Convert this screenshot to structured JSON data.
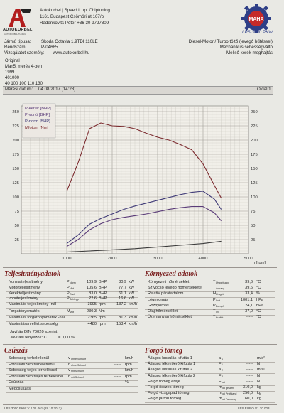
{
  "header": {
    "company_line1": "Autokorbel | Speed it up! Chiptuning",
    "company_line2": "1161 Budapest Csömöri út 167/b",
    "company_line3": "Radenkovits Péter +36 30 9727809",
    "logo_text": "AUTOKORBEL",
    "logo_sub": "AUTOKORBEL TUNING",
    "brand": "MAHA",
    "model": "LPS 3000 PKW"
  },
  "vehicle": {
    "type_label": "Jármű típusa:",
    "type_value": "Skoda Octavia 1,9TDI 110LE",
    "plate_label": "Rendszám:",
    "plate_value": "P-04685",
    "owner_label": "Vizsgálatot személy:",
    "owner_value": "www.autokorbel.hu",
    "engine": "Diesel-Motor / Turbo töltő (levegő hűtéssel)",
    "gearbox": "Mechanikus sebességváltó",
    "drive": "Mellső kerék meghajtás"
  },
  "notes": [
    "Original",
    "Man5, mérés 4-ben",
    "1999",
    "401000",
    "40 100 100 110 130"
  ],
  "meta": {
    "date_label": "Mérési dátum:",
    "date_value": "04.08.2017 (14:28)",
    "page": "Oldal 1"
  },
  "chart_data": {
    "type": "line",
    "xlabel": "n [rpm]",
    "x_ticks": [
      "1000",
      "2000",
      "3000",
      "4000",
      "5000"
    ],
    "x_lim": [
      0,
      5000
    ],
    "left_ticks": [
      "250",
      "225",
      "200",
      "175",
      "150",
      "125",
      "100",
      "75",
      "50",
      "25"
    ],
    "right_ticks": [
      "250",
      "225",
      "200",
      "175",
      "150",
      "125",
      "100",
      "75",
      "50",
      "25"
    ],
    "legend": [
      "P-kerék [BHP]",
      "P-vonó [BHP]",
      "P-norm [BHP]",
      "Mfotom [Nm]"
    ],
    "grid": true,
    "series": [
      {
        "name": "Mfotom [Nm]",
        "color": "#7b2a2e",
        "x": [
          1000,
          1250,
          1500,
          1750,
          2000,
          2250,
          2500,
          2750,
          3000,
          3250,
          3500,
          3750,
          4000,
          4250,
          4400
        ],
        "y": [
          110,
          160,
          220,
          230,
          225,
          224,
          220,
          212,
          205,
          200,
          192,
          183,
          158,
          120,
          98
        ]
      },
      {
        "name": "P-norm [BHP]",
        "color": "#3f3a77",
        "x": [
          1000,
          1250,
          1500,
          1750,
          2000,
          2250,
          2500,
          2750,
          3000,
          3250,
          3500,
          3750,
          4000,
          4250,
          4400
        ],
        "y": [
          18,
          33,
          52,
          62,
          70,
          78,
          84,
          89,
          94,
          99,
          104,
          108,
          110,
          96,
          78
        ]
      },
      {
        "name": "P-kerék [BHP]",
        "color": "#5a3b78",
        "x": [
          1000,
          1250,
          1500,
          1750,
          2000,
          2250,
          2500,
          2750,
          3000,
          3250,
          3500,
          3750,
          4000,
          4250,
          4400
        ],
        "y": [
          13,
          25,
          42,
          53,
          60,
          64,
          67,
          70,
          74,
          78,
          81,
          83,
          83,
          72,
          58
        ]
      },
      {
        "name": "P-vonó [BHP]",
        "color": "#3b3b3b",
        "x": [
          1000,
          1500,
          2000,
          2500,
          3000,
          3500,
          4000,
          4400
        ],
        "y": [
          3,
          5,
          7,
          9,
          12,
          15,
          18,
          22
        ]
      }
    ]
  },
  "performance": {
    "title": "Teljesítményadatok",
    "rows": [
      {
        "label": "Normalteljesítmény",
        "sym": "P",
        "sub": "Norm",
        "v1": "109,9",
        "u1": "BHP",
        "v2": "80,9",
        "u2": "kW"
      },
      {
        "label": "Motorteljesítmény",
        "sym": "P",
        "sub": "Mot",
        "v1": "105,6",
        "u1": "BHP",
        "v2": "77,7",
        "u2": "kW"
      },
      {
        "label": "Keréktelljesítmény",
        "sym": "P",
        "sub": "Rad",
        "v1": "83,0",
        "u1": "BHP",
        "v2": "61,1",
        "u2": "kW"
      },
      {
        "label": "vonóteljesítmény",
        "sym": "P",
        "sub": "Schlepp",
        "v1": "22,6",
        "u1": "BHP",
        "v2": "16,6",
        "u2": "kW"
      },
      {
        "label": "Maximális teljesítmény -nál",
        "sym": "",
        "sub": "",
        "v1": "3995",
        "u1": "rpm",
        "v2": "137,2",
        "u2": "km/h"
      }
    ],
    "torque_rows": [
      {
        "label": "Forgatónyomaték",
        "sym": "M",
        "sub": "Mot",
        "v1": "230,3",
        "u1": "Nm",
        "v2": "",
        "u2": ""
      },
      {
        "label": "Maximális forgatónyomaték -nál",
        "sym": "",
        "sub": "",
        "v1": "2365",
        "u1": "rpm",
        "v2": "81,3",
        "u2": "km/h"
      },
      {
        "label": "Maximálisan elért sebesség",
        "sym": "",
        "sub": "",
        "v1": "4480",
        "u1": "rpm",
        "v2": "153,4",
        "u2": "km/h"
      }
    ],
    "norm_line": "Javítás DIN 70020 szerint",
    "factor_line": "Javítási tényezők: C",
    "factor_value": "= 0,00 %"
  },
  "environment": {
    "title": "Környezeti adatok",
    "rows": [
      {
        "label": "Környezeti hőmérséklet",
        "sym": "T",
        "sub": "Umgebung",
        "val": "39,6",
        "unit": "°C"
      },
      {
        "label": "Szívócső levegő hőmérséklete",
        "sym": "T",
        "sub": "Ansaug",
        "val": "39,6",
        "unit": "°C"
      },
      {
        "label": "Relatív páratartalom",
        "sym": "H",
        "sub": "Umgeb",
        "val": "33,4",
        "unit": "%"
      },
      {
        "label": "Légnyomás",
        "sym": "P",
        "sub": "Luft",
        "val": "1001,1",
        "unit": "hPa"
      },
      {
        "label": "Gőznyomás",
        "sym": "P",
        "sub": "Dampf",
        "val": "24,1",
        "unit": "hPa"
      },
      {
        "label": "Olaj hőmérséklet",
        "sym": "T",
        "sub": "Öl",
        "val": "37,0",
        "unit": "°C"
      },
      {
        "label": "Üzemanyag hőmérséklet",
        "sym": "T",
        "sub": "Kraftst",
        "val": "---,-",
        "unit": "°C"
      }
    ]
  },
  "slip": {
    "title": "Csúszás",
    "rows": [
      {
        "label": "Sebesség terheletlenül",
        "sym": "v",
        "sub": "ohne Schlupf",
        "val": "---,-",
        "unit": "km/h"
      },
      {
        "label": "Fordulatszám terheletlenül",
        "sym": "n",
        "sub": "ohne Schlupf",
        "val": "---,-",
        "unit": "rpm"
      },
      {
        "label": "Sebesség teljes terhelésnél",
        "sym": "v",
        "sub": "mit Schlupf",
        "val": "---,-",
        "unit": "km/h"
      },
      {
        "label": "Fordulatszám teljes terhelésnél",
        "sym": "n",
        "sub": "mit Schlupf",
        "val": "---,-",
        "unit": "rpm"
      },
      {
        "label": "Csúszás",
        "sym": "",
        "sub": "",
        "val": "---,-",
        "unit": "%"
      },
      {
        "label": "Megcsúszás",
        "sym": "",
        "sub": "",
        "val": "",
        "unit": ""
      }
    ]
  },
  "rotating": {
    "title": "Forgó tömeg",
    "rows": [
      {
        "label": "Átlagos lassulás kifutás 1",
        "sym": "a",
        "sub": "1",
        "val": "---,-",
        "unit": "m/s²"
      },
      {
        "label": "Átlagos fékezőerő kifutás 1",
        "sym": "F",
        "sub": "1",
        "val": "---,-",
        "unit": "N"
      },
      {
        "label": "Átlagos lassulás kifutás 2",
        "sym": "a",
        "sub": "2",
        "val": "---,-",
        "unit": "m/s²"
      },
      {
        "label": "Átlagos fékezőerő kifutás 2",
        "sym": "F",
        "sub": "2",
        "val": "---,-",
        "unit": "N"
      },
      {
        "label": "Forgó tömeg ereje",
        "sym": "F",
        "sub": "roti",
        "val": "---,-",
        "unit": "N"
      },
      {
        "label": "Forgó összes tömeg",
        "sym": "m",
        "sub": "roti gesamt",
        "val": "310,0",
        "unit": "kg"
      },
      {
        "label": "Forgó vizsgapad tömeg",
        "sym": "m",
        "sub": "roti Prüfstand",
        "val": "250,0",
        "unit": "kg"
      },
      {
        "label": "Forgó jármű tömeg",
        "sym": "m",
        "sub": "roti Fahrzeug",
        "val": "60,0",
        "unit": "kg"
      }
    ]
  },
  "footer": {
    "left": "LPS 3000 PKW V 2.01.061 (28.10.2011)",
    "right": "LPS EURO V1.30.003"
  }
}
